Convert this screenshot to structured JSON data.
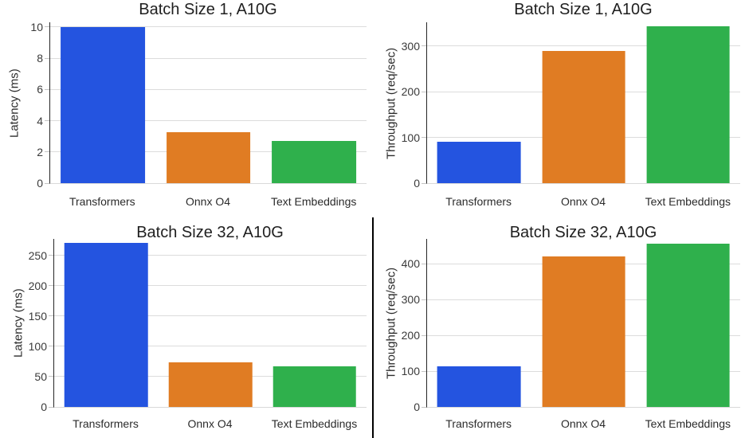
{
  "figure": {
    "background": "#ffffff",
    "grid_color": "#dcdcdc",
    "spine_color": "#262626",
    "text_color": "#2b2b2b",
    "bar_colors": [
      "#2454e0",
      "#e07c23",
      "#2fb04c"
    ],
    "bar_color_names": [
      "blue",
      "orange",
      "green"
    ]
  },
  "categories": [
    "Transformers",
    "Onnx O4",
    "Text Embeddings"
  ],
  "chart_data": [
    {
      "type": "bar",
      "title": "Batch Size 1, A10G",
      "ylabel": "Latency (ms)",
      "xlabel": "",
      "categories": [
        "Transformers",
        "Onnx O4",
        "Text Embeddings"
      ],
      "values": [
        10.0,
        3.25,
        2.7
      ],
      "yticks": [
        0,
        2,
        4,
        6,
        8,
        10
      ],
      "ylim": [
        0,
        10.3
      ],
      "grid": "horizontal",
      "legend": "none"
    },
    {
      "type": "bar",
      "title": "Batch Size 1, A10G",
      "ylabel": "Throughput (req/sec)",
      "xlabel": "",
      "categories": [
        "Transformers",
        "Onnx O4",
        "Text Embeddings"
      ],
      "values": [
        91,
        289,
        343
      ],
      "yticks": [
        0,
        100,
        200,
        300
      ],
      "ylim": [
        0,
        352
      ],
      "grid": "horizontal",
      "legend": "none"
    },
    {
      "type": "bar",
      "title": "Batch Size 32, A10G",
      "ylabel": "Latency (ms)",
      "xlabel": "",
      "categories": [
        "Transformers",
        "Onnx O4",
        "Text Embeddings"
      ],
      "values": [
        270,
        74,
        67
      ],
      "yticks": [
        0,
        50,
        100,
        150,
        200,
        250
      ],
      "ylim": [
        0,
        277
      ],
      "grid": "horizontal",
      "legend": "none"
    },
    {
      "type": "bar",
      "title": "Batch Size 32, A10G",
      "ylabel": "Throughput (req/sec)",
      "xlabel": "",
      "categories": [
        "Transformers",
        "Onnx O4",
        "Text Embeddings"
      ],
      "values": [
        114,
        420,
        457
      ],
      "yticks": [
        0,
        100,
        200,
        300,
        400
      ],
      "ylim": [
        0,
        470
      ],
      "grid": "horizontal",
      "legend": "none"
    }
  ],
  "divider": {
    "description": "vertical black separator between bottom-left and bottom-right charts"
  }
}
